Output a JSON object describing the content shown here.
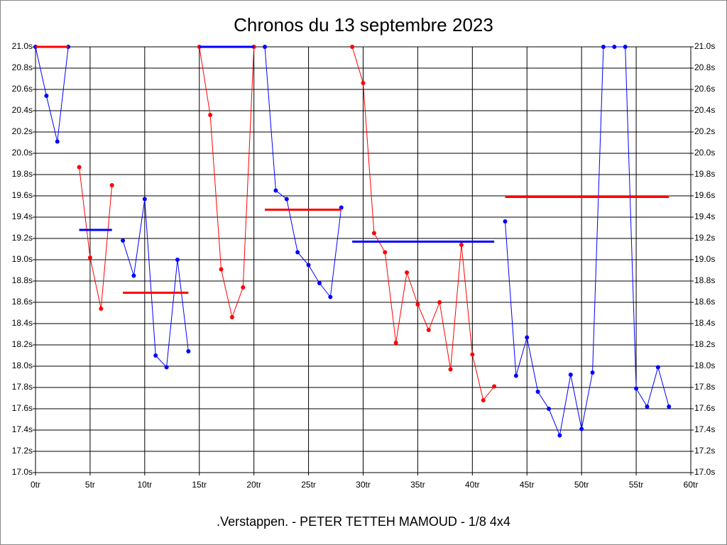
{
  "chart_data": {
    "type": "line",
    "title": "Chronos du 13 septembre 2023",
    "xlabel": ".Verstappen. - PETER TETTEH MAMOUD - 1/8 4x4",
    "grid": true,
    "xlim": [
      0,
      60
    ],
    "xticks": [
      {
        "value": 0,
        "label": "0tr"
      },
      {
        "value": 5,
        "label": "5tr"
      },
      {
        "value": 10,
        "label": "10tr"
      },
      {
        "value": 15,
        "label": "15tr"
      },
      {
        "value": 20,
        "label": "20tr"
      },
      {
        "value": 25,
        "label": "25tr"
      },
      {
        "value": 30,
        "label": "30tr"
      },
      {
        "value": 35,
        "label": "35tr"
      },
      {
        "value": 40,
        "label": "40tr"
      },
      {
        "value": 45,
        "label": "45tr"
      },
      {
        "value": 50,
        "label": "50tr"
      },
      {
        "value": 55,
        "label": "55tr"
      },
      {
        "value": 60,
        "label": "60tr"
      }
    ],
    "ylim": [
      17,
      21
    ],
    "yticks": [
      {
        "value": 17.0,
        "label": "17.0s"
      },
      {
        "value": 17.2,
        "label": "17.2s"
      },
      {
        "value": 17.4,
        "label": "17.4s"
      },
      {
        "value": 17.6,
        "label": "17.6s"
      },
      {
        "value": 17.8,
        "label": "17.8s"
      },
      {
        "value": 18.0,
        "label": "18.0s"
      },
      {
        "value": 18.2,
        "label": "18.2s"
      },
      {
        "value": 18.4,
        "label": "18.4s"
      },
      {
        "value": 18.6,
        "label": "18.6s"
      },
      {
        "value": 18.8,
        "label": "18.8s"
      },
      {
        "value": 19.0,
        "label": "19.0s"
      },
      {
        "value": 19.2,
        "label": "19.2s"
      },
      {
        "value": 19.4,
        "label": "19.4s"
      },
      {
        "value": 19.6,
        "label": "19.6s"
      },
      {
        "value": 19.8,
        "label": "19.8s"
      },
      {
        "value": 20.0,
        "label": "20.0s"
      },
      {
        "value": 20.2,
        "label": "20.2s"
      },
      {
        "value": 20.4,
        "label": "20.4s"
      },
      {
        "value": 20.6,
        "label": "20.6s"
      },
      {
        "value": 20.8,
        "label": "20.8s"
      },
      {
        "value": 21.0,
        "label": "21.0s"
      }
    ],
    "series": [
      {
        "color": "#0000ff",
        "x": [
          0,
          1,
          2,
          3
        ],
        "values": [
          21.0,
          20.54,
          20.11,
          21.0
        ]
      },
      {
        "color": "#ff0000",
        "x": [
          4,
          5,
          6,
          7
        ],
        "values": [
          19.87,
          19.02,
          18.54,
          19.7
        ]
      },
      {
        "color": "#0000ff",
        "x": [
          8,
          9,
          10,
          11,
          12,
          13,
          14
        ],
        "values": [
          19.18,
          18.85,
          19.57,
          18.1,
          17.99,
          19.0,
          18.14
        ]
      },
      {
        "color": "#ff0000",
        "x": [
          15,
          16,
          17,
          18,
          19,
          20
        ],
        "values": [
          21.0,
          20.36,
          18.91,
          18.46,
          18.74,
          21.0
        ]
      },
      {
        "color": "#0000ff",
        "x": [
          21,
          22,
          23,
          24,
          25,
          26,
          27,
          28
        ],
        "values": [
          21.0,
          19.65,
          19.57,
          19.07,
          18.95,
          18.78,
          18.65,
          19.49
        ]
      },
      {
        "color": "#ff0000",
        "x": [
          29,
          30,
          31,
          32,
          33,
          34,
          35,
          36,
          37,
          38,
          39,
          40,
          41,
          42
        ],
        "values": [
          21.0,
          20.66,
          19.25,
          19.07,
          18.22,
          18.88,
          18.58,
          18.34,
          18.6,
          17.97,
          19.14,
          18.11,
          17.68,
          17.81
        ]
      },
      {
        "color": "#0000ff",
        "x": [
          43,
          44,
          45,
          46,
          47,
          48,
          49,
          50,
          51,
          52,
          53,
          54,
          55,
          56,
          57,
          58
        ],
        "values": [
          19.36,
          17.91,
          18.27,
          17.76,
          17.6,
          17.35,
          17.92,
          17.41,
          17.94,
          21.0,
          21.0,
          21.0,
          17.79,
          17.62,
          17.99,
          17.62
        ]
      }
    ],
    "reference_lines": [
      {
        "color": "#ff0000",
        "x": [
          0,
          3
        ],
        "value": 21.0
      },
      {
        "color": "#0000ff",
        "x": [
          4,
          7
        ],
        "value": 19.28
      },
      {
        "color": "#ff0000",
        "x": [
          8,
          14
        ],
        "value": 18.69
      },
      {
        "color": "#0000ff",
        "x": [
          15,
          20
        ],
        "value": 21.0
      },
      {
        "color": "#ff0000",
        "x": [
          21,
          28
        ],
        "value": 19.47
      },
      {
        "color": "#0000ff",
        "x": [
          29,
          42
        ],
        "value": 19.17
      },
      {
        "color": "#ff0000",
        "x": [
          43,
          58
        ],
        "value": 19.59
      }
    ]
  }
}
